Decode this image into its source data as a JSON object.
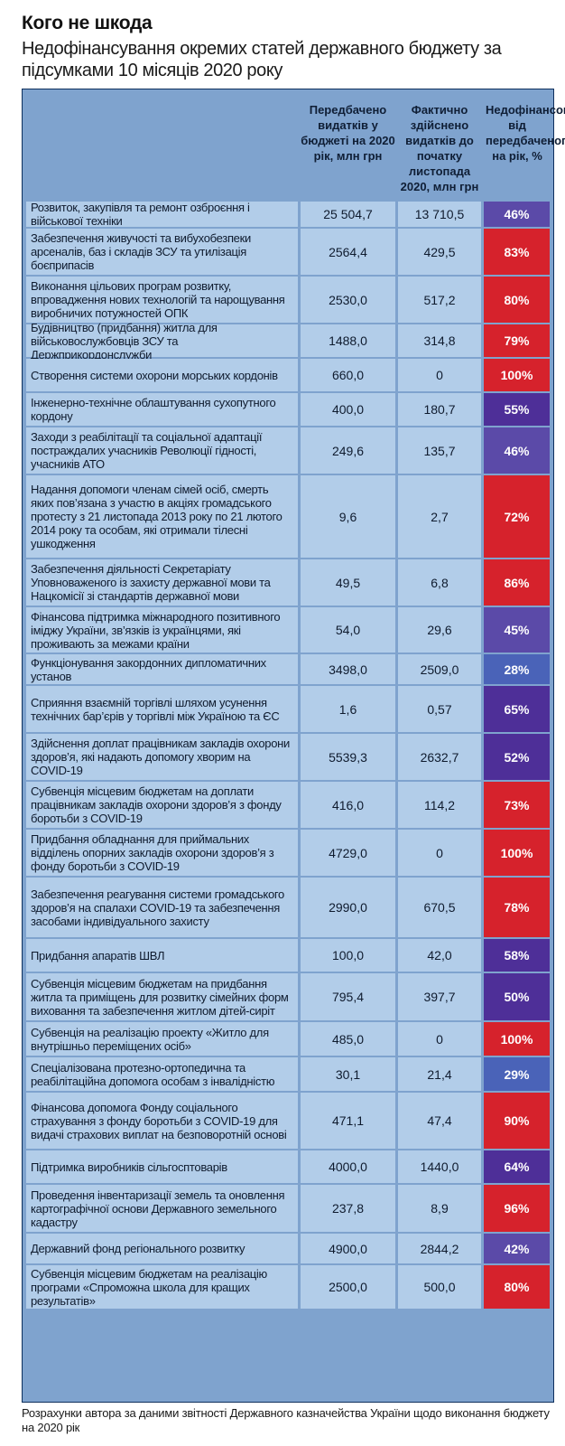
{
  "header": {
    "title": "Кого не шкода",
    "subtitle": "Недофінансування окремих статей державного бюджету за підсумками 10 місяців 2020 року"
  },
  "table": {
    "columns": {
      "planned": "Передбачено видатків у бюджеті на 2020 рік, млн грн",
      "actual": "Фактично здійснено видатків до початку листопада 2020, млн грн",
      "underfunded": "Недофінансовано від передбаченого на рік, %"
    },
    "rows": [
      {
        "label": "Розвиток, закупівля та ремонт озброєння і військової техніки",
        "planned": "25 504,7",
        "actual": "13 710,5",
        "pct": "46%",
        "color": "#5b4aa8"
      },
      {
        "label": "Забезпечення живучості та вибухобезпеки арсеналів, баз і складів ЗСУ та утилізація боєприпасів",
        "planned": "2564,4",
        "actual": "429,5",
        "pct": "83%",
        "color": "#d6222c"
      },
      {
        "label": "Виконання цільових програм розвитку, впровадження нових технологій та нарощування виробничих потужностей ОПК",
        "planned": "2530,0",
        "actual": "517,2",
        "pct": "80%",
        "color": "#d6222c"
      },
      {
        "label": "Будівництво (придбання) житла для військовослужбовців ЗСУ та Держприкордонслужби",
        "planned": "1488,0",
        "actual": "314,8",
        "pct": "79%",
        "color": "#d6222c"
      },
      {
        "label": "Створення системи охорони морських кордонів",
        "planned": "660,0",
        "actual": "0",
        "pct": "100%",
        "color": "#d6222c"
      },
      {
        "label": "Інженерно-технічне облаштування сухопутного кордону",
        "planned": "400,0",
        "actual": "180,7",
        "pct": "55%",
        "color": "#4e2f98"
      },
      {
        "label": "Заходи з реабілітації та соціальної адаптації постраждалих учасників Революції гідності, учасників АТО",
        "planned": "249,6",
        "actual": "135,7",
        "pct": "46%",
        "color": "#5b4aa8"
      },
      {
        "label": "Надання допомоги членам сімей осіб, смерть яких пов’язана з участю в акціях громадського протесту з 21 листопада 2013 року по 21 лютого 2014 року та особам, які отримали тілесні ушкодження",
        "planned": "9,6",
        "actual": "2,7",
        "pct": "72%",
        "color": "#d6222c"
      },
      {
        "label": "Забезпечення діяльності Секретаріату Уповноваженого із захисту державної мови та Нацкомісії зі стандартів державної мови",
        "planned": "49,5",
        "actual": "6,8",
        "pct": "86%",
        "color": "#d6222c"
      },
      {
        "label": "Фінансова підтримка міжнародного позитивного іміджу України, зв’язків із українцями, які проживають за межами країни",
        "planned": "54,0",
        "actual": "29,6",
        "pct": "45%",
        "color": "#5b4aa8"
      },
      {
        "label": "Функціонування закордонних дипломатичних установ",
        "planned": "3498,0",
        "actual": "2509,0",
        "pct": "28%",
        "color": "#4a63b8"
      },
      {
        "label": "Сприяння взаємній торгівлі шляхом усунення технічних бар’єрів у торгівлі між Україною та ЄС",
        "planned": "1,6",
        "actual": "0,57",
        "pct": "65%",
        "color": "#4e2f98"
      },
      {
        "label": "Здійснення доплат працівникам закладів охорони здоров’я, які надають допомогу хворим на COVID-19",
        "planned": "5539,3",
        "actual": "2632,7",
        "pct": "52%",
        "color": "#4e2f98"
      },
      {
        "label": "Субвенція місцевим бюджетам на доплати працівникам закладів охорони здоров’я з фонду боротьби з COVID-19",
        "planned": "416,0",
        "actual": "114,2",
        "pct": "73%",
        "color": "#d6222c"
      },
      {
        "label": "Придбання обладнання для приймальних відділень опорних закладів охорони здоров’я з фонду боротьби з COVID-19",
        "planned": "4729,0",
        "actual": "0",
        "pct": "100%",
        "color": "#d6222c"
      },
      {
        "label": "Забезпечення реагування системи громадського здоров’я на спалахи COVID-19 та забезпечення засобами індивідуального захисту",
        "planned": "2990,0",
        "actual": "670,5",
        "pct": "78%",
        "color": "#d6222c"
      },
      {
        "label": "Придбання апаратів ШВЛ",
        "planned": "100,0",
        "actual": "42,0",
        "pct": "58%",
        "color": "#4e2f98"
      },
      {
        "label": "Субвенція місцевим бюджетам на придбання житла та приміщень для розвитку сімейних форм виховання та забезпечення житлом дітей-сиріт",
        "planned": "795,4",
        "actual": "397,7",
        "pct": "50%",
        "color": "#4e2f98"
      },
      {
        "label": "Субвенція на реалізацію проекту «Житло для внутрішньо переміщених осіб»",
        "planned": "485,0",
        "actual": "0",
        "pct": "100%",
        "color": "#d6222c"
      },
      {
        "label": "Спеціалізована протезно-ортопедична та реабілітаційна  допомога особам з інвалідністю",
        "planned": "30,1",
        "actual": "21,4",
        "pct": "29%",
        "color": "#4a63b8"
      },
      {
        "label": "Фінансова допомога Фонду соціального страхування з фонду боротьби з COVID-19 для видачі страхових виплат на безповоротній основі",
        "planned": "471,1",
        "actual": "47,4",
        "pct": "90%",
        "color": "#d6222c"
      },
      {
        "label": "Підтримка виробників сільгосптоварів",
        "planned": "4000,0",
        "actual": "1440,0",
        "pct": "64%",
        "color": "#4e2f98"
      },
      {
        "label": "Проведення інвентаризації земель та оновлення картографічної основи Державного земельного кадастру",
        "planned": "237,8",
        "actual": "8,9",
        "pct": "96%",
        "color": "#d6222c"
      },
      {
        "label": "Державний фонд регіонального розвитку",
        "planned": "4900,0",
        "actual": "2844,2",
        "pct": "42%",
        "color": "#5b4aa8"
      },
      {
        "label": "Субвенція місцевим бюджетам на реалізацію програми «Спроможна школа для кращих результатів»",
        "planned": "2500,0",
        "actual": "500,0",
        "pct": "80%",
        "color": "#d6222c"
      }
    ]
  },
  "source": "Розрахунки автора за даними звітності Державного казначейства України щодо виконання бюджету на 2020 рік"
}
